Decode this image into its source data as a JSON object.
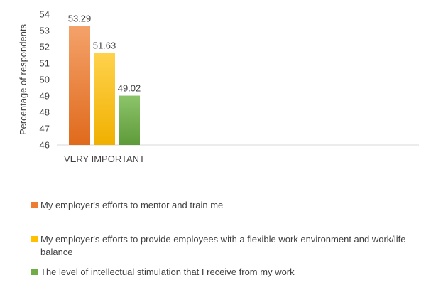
{
  "chart_data": {
    "type": "bar",
    "categories": [
      "VERY IMPORTANT"
    ],
    "series": [
      {
        "name": "My employer's efforts to mentor and train me",
        "values": [
          53.29
        ],
        "color": "#ed7d31"
      },
      {
        "name": "My employer's efforts to provide employees with a flexible work environment and work/life balance",
        "values": [
          51.63
        ],
        "color": "#ffc000"
      },
      {
        "name": "The level of intellectual stimulation that I receive from my work",
        "values": [
          49.02
        ],
        "color": "#70ad47"
      }
    ],
    "title": "",
    "xlabel": "",
    "ylabel": "Percentage of respondents",
    "ylim": [
      46,
      54
    ],
    "yticks": [
      46,
      47,
      48,
      49,
      50,
      51,
      52,
      53,
      54
    ],
    "data_labels": [
      "53.29",
      "51.63",
      "49.02"
    ],
    "grid": false,
    "legend_position": "bottom"
  }
}
